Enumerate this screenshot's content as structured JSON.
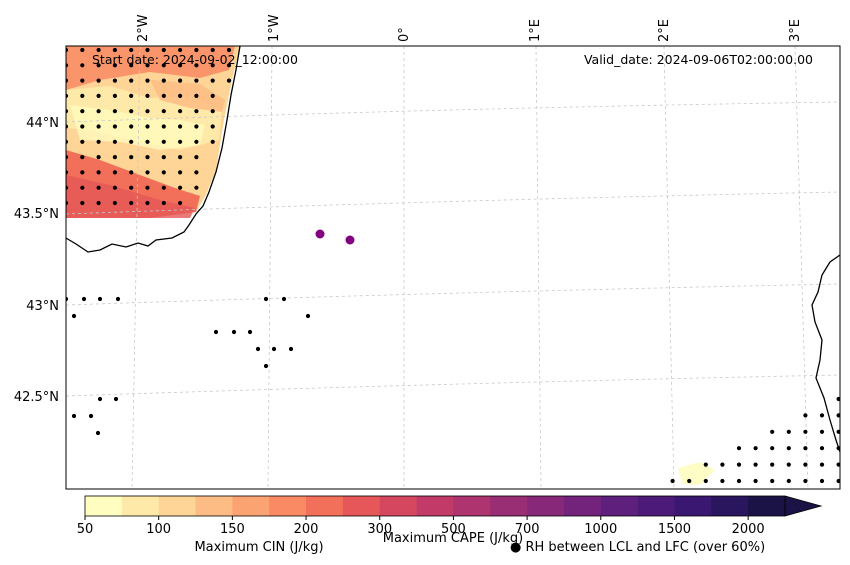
{
  "map": {
    "start_date": "Start date: 2024-09-02_12:00:00",
    "valid_date": "Valid_date: 2024-09-06T02:00:00.00",
    "lon_labels": [
      "2°W",
      "1°W",
      "0°",
      "1°E",
      "2°E",
      "3°E"
    ],
    "lat_labels": [
      "44°N",
      "43.5°N",
      "43°N",
      "42.5°N"
    ]
  },
  "colorbar": {
    "ticks": [
      "50",
      "100",
      "150",
      "200",
      "300",
      "500",
      "700",
      "1000",
      "1500",
      "2000"
    ],
    "colors": [
      "#fffdc0",
      "#fee9a8",
      "#fed597",
      "#fdbc84",
      "#fca372",
      "#f98a63",
      "#f26f5a",
      "#e55758",
      "#d5465f",
      "#c23b68",
      "#ae346f",
      "#9a2e74",
      "#872978",
      "#73237b",
      "#5f1f7d",
      "#4c1b7a",
      "#3a1872",
      "#29165e",
      "#1b1345"
    ],
    "label_cape": "Maximum CAPE (J/kg)",
    "label_cin": "Maximum CIN (J/kg)",
    "label_rh": "● RH between LCL and LFC (over 60%)",
    "cin_color": "#ff0000"
  }
}
